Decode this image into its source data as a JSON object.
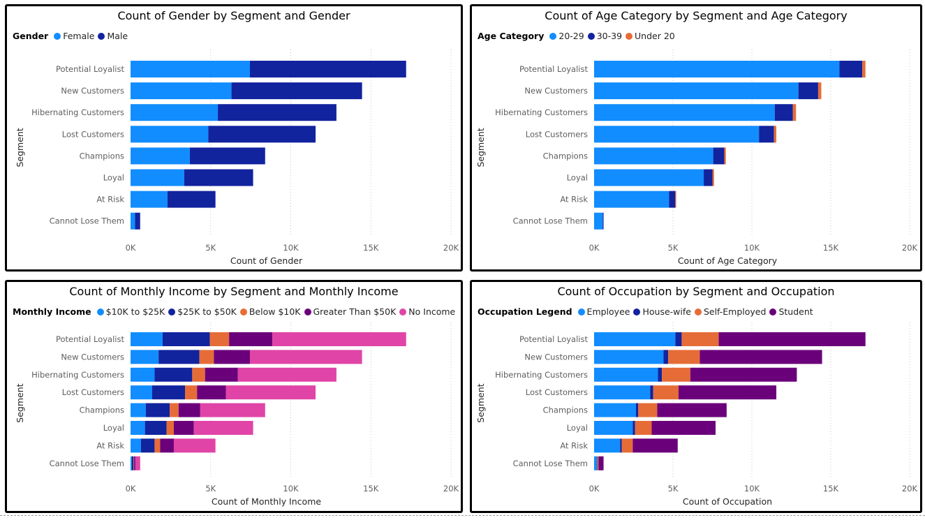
{
  "chart_data": [
    {
      "type": "bar",
      "title": "Count of Gender by Segment and Gender",
      "legend_title": "Gender",
      "xlabel": "Count of Gender",
      "ylabel": "Segment",
      "xlim": [
        0,
        20000
      ],
      "ticks": [
        0,
        5000,
        10000,
        15000,
        20000
      ],
      "tick_labels": [
        "0K",
        "5K",
        "10K",
        "15K",
        "20K"
      ],
      "categories": [
        "Potential Loyalist",
        "New Customers",
        "Hibernating Customers",
        "Lost Customers",
        "Champions",
        "Loyal",
        "At Risk",
        "Cannot Lose Them"
      ],
      "series": [
        {
          "name": "Female",
          "color": "#118DFF",
          "values": [
            7450,
            6300,
            5450,
            4850,
            3700,
            3350,
            2300,
            280
          ]
        },
        {
          "name": "Male",
          "color": "#12239E",
          "values": [
            9750,
            8150,
            7400,
            6700,
            4700,
            4300,
            3000,
            320
          ]
        }
      ]
    },
    {
      "type": "bar",
      "title": "Count of Age Category by Segment and Age Category",
      "legend_title": "Age Category",
      "xlabel": "Count of Age Category",
      "ylabel": "Segment",
      "xlim": [
        0,
        20000
      ],
      "ticks": [
        0,
        5000,
        10000,
        15000,
        20000
      ],
      "tick_labels": [
        "0K",
        "5K",
        "10K",
        "15K",
        "20K"
      ],
      "categories": [
        "Potential Loyalist",
        "New Customers",
        "Hibernating Customers",
        "Lost Customers",
        "Champions",
        "Loyal",
        "At Risk",
        "Cannot Lose Them"
      ],
      "series": [
        {
          "name": "20-29",
          "color": "#118DFF",
          "values": [
            15550,
            12950,
            11450,
            10450,
            7550,
            6950,
            4750,
            550
          ]
        },
        {
          "name": "30-39",
          "color": "#12239E",
          "values": [
            1450,
            1250,
            1150,
            950,
            700,
            550,
            400,
            50
          ]
        },
        {
          "name": "Under 20",
          "color": "#E66C37",
          "values": [
            200,
            200,
            200,
            150,
            100,
            100,
            50,
            0
          ]
        }
      ]
    },
    {
      "type": "bar",
      "title": "Count of Monthly Income by Segment and Monthly Income",
      "legend_title": "Monthly Income",
      "xlabel": "Count of Monthly Income",
      "ylabel": "Segment",
      "xlim": [
        0,
        20000
      ],
      "ticks": [
        0,
        5000,
        10000,
        15000,
        20000
      ],
      "tick_labels": [
        "0K",
        "5K",
        "10K",
        "15K",
        "20K"
      ],
      "categories": [
        "Potential Loyalist",
        "New Customers",
        "Hibernating Customers",
        "Lost Customers",
        "Champions",
        "Loyal",
        "At Risk",
        "Cannot Lose Them"
      ],
      "series": [
        {
          "name": "$10K to $25K",
          "color": "#118DFF",
          "values": [
            2000,
            1750,
            1500,
            1350,
            950,
            900,
            650,
            80
          ]
        },
        {
          "name": "$25K to $50K",
          "color": "#12239E",
          "values": [
            2950,
            2550,
            2350,
            2050,
            1500,
            1350,
            850,
            100
          ]
        },
        {
          "name": "Below $10K",
          "color": "#E66C37",
          "values": [
            1200,
            900,
            800,
            750,
            550,
            450,
            350,
            40
          ]
        },
        {
          "name": "Greater Than $50K",
          "color": "#6B007B",
          "values": [
            2700,
            2250,
            2050,
            1800,
            1350,
            1250,
            850,
            80
          ]
        },
        {
          "name": "No Income",
          "color": "#E044A7",
          "values": [
            8350,
            7000,
            6150,
            5600,
            4050,
            3700,
            2600,
            300
          ]
        }
      ]
    },
    {
      "type": "bar",
      "title": "Count of Occupation by Segment and Occupation",
      "legend_title": "Occupation Legend",
      "xlabel": "Count of Occupation",
      "ylabel": "Segment",
      "xlim": [
        0,
        20000
      ],
      "ticks": [
        0,
        5000,
        10000,
        15000,
        20000
      ],
      "tick_labels": [
        "0K",
        "5K",
        "10K",
        "15K",
        "20K"
      ],
      "categories": [
        "Potential Loyalist",
        "New Customers",
        "Hibernating Customers",
        "Lost Customers",
        "Champions",
        "Loyal",
        "At Risk",
        "Cannot Lose Them"
      ],
      "series": [
        {
          "name": "Employee",
          "color": "#118DFF",
          "values": [
            5150,
            4400,
            4050,
            3550,
            2650,
            2450,
            1650,
            180
          ]
        },
        {
          "name": "House-wife",
          "color": "#12239E",
          "values": [
            400,
            300,
            250,
            200,
            150,
            150,
            100,
            20
          ]
        },
        {
          "name": "Self-Employed",
          "color": "#E66C37",
          "values": [
            2350,
            2000,
            1800,
            1600,
            1200,
            1050,
            700,
            80
          ]
        },
        {
          "name": "Student",
          "color": "#6B007B",
          "values": [
            9300,
            7750,
            6750,
            6200,
            4400,
            4050,
            2850,
            320
          ]
        }
      ]
    }
  ]
}
